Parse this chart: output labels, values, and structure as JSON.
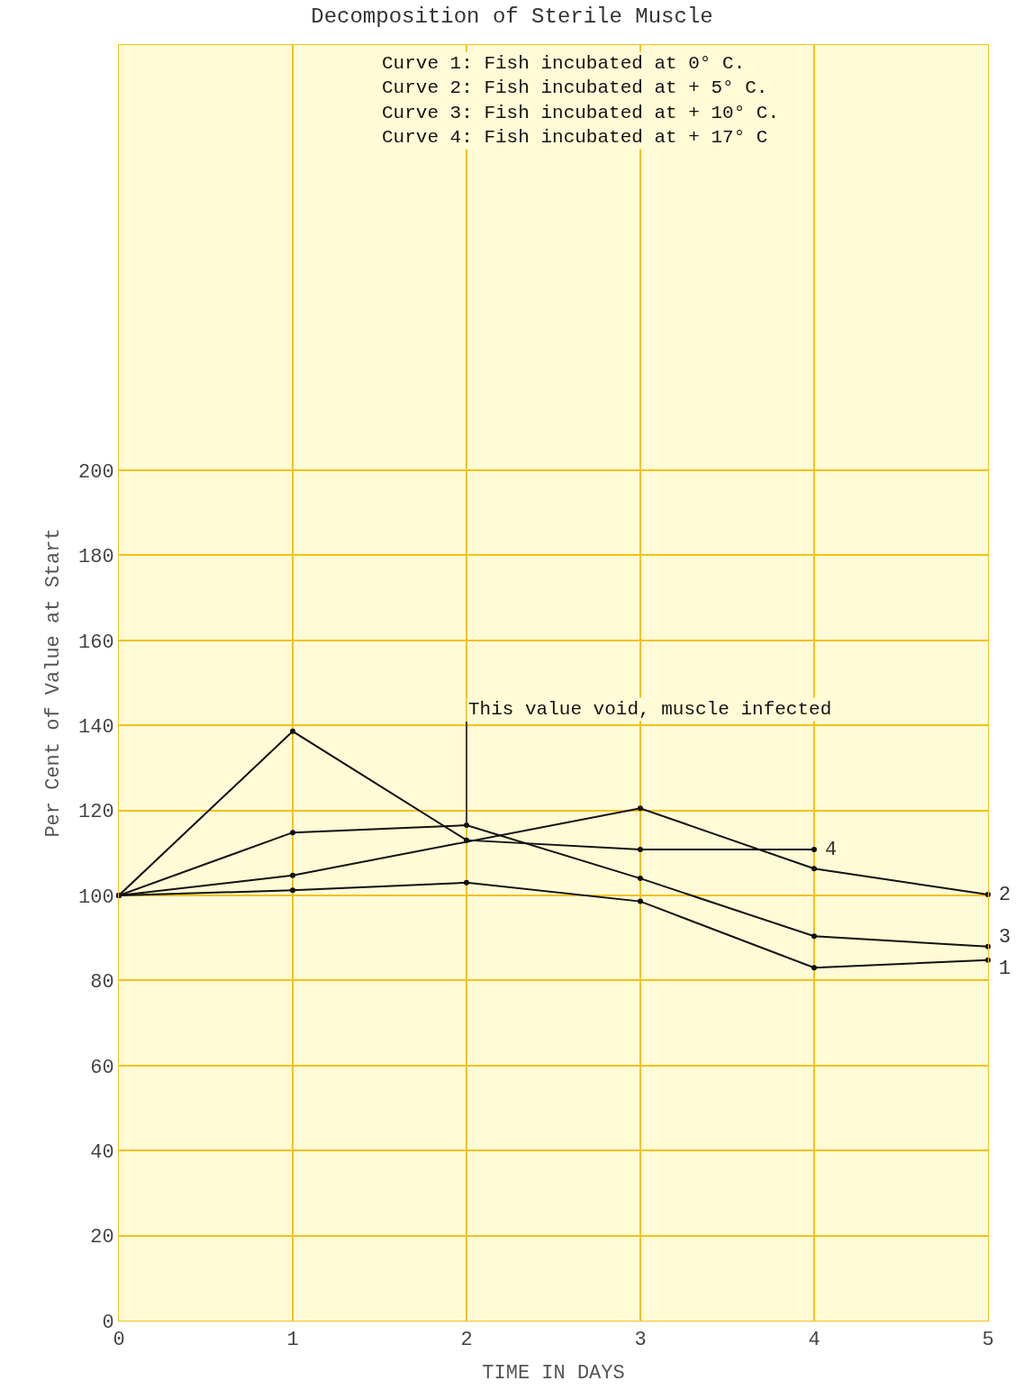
{
  "chart_data": {
    "type": "line",
    "title": "Decomposition of Sterile Muscle",
    "xlabel": "TIME IN DAYS",
    "ylabel": "Per Cent of Value at Start",
    "x": [
      0,
      1,
      2,
      3,
      4,
      5
    ],
    "series": [
      {
        "name": "1",
        "color": "#111111",
        "values": [
          100,
          101.2,
          103,
          98.6,
          83,
          84.8
        ]
      },
      {
        "name": "2",
        "color": "#111111",
        "x": [
          0,
          1,
          3,
          4,
          5
        ],
        "values": [
          100,
          104.7,
          120.5,
          106.3,
          100.2
        ]
      },
      {
        "name": "3",
        "color": "#111111",
        "values": [
          100,
          114.8,
          116.5,
          104,
          90.4,
          88
        ]
      },
      {
        "name": "4",
        "color": "#111111",
        "x": [
          0,
          1,
          2,
          3,
          4
        ],
        "values": [
          100,
          138.6,
          113,
          110.8,
          110.8
        ]
      }
    ],
    "annotations": [
      "Curve 1: Fish incubated at 0° C.",
      "Curve 2: Fish incubated at + 5° C.",
      "Curve 3: Fish incubated at + 10° C.",
      "Curve 4: Fish incubated at + 17° C",
      {
        "text": "This value void, muscle infected",
        "x": 2,
        "y": 116.5
      }
    ],
    "xlim": [
      0,
      5
    ],
    "xticks": [
      0,
      1,
      2,
      3,
      4,
      5
    ],
    "ylim": [
      0,
      300
    ],
    "yticks": [
      0,
      20,
      40,
      60,
      80,
      100,
      120,
      140,
      160,
      180,
      200
    ],
    "grid": true,
    "marker": "circle",
    "line_style": "solid",
    "legend": false
  }
}
